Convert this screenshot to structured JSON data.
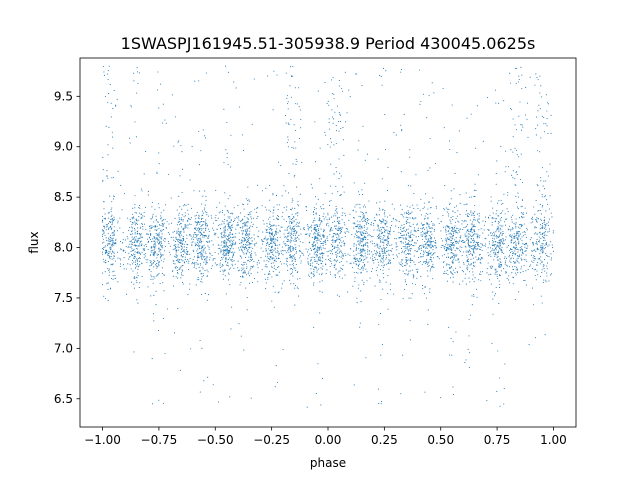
{
  "chart_data": {
    "type": "scatter",
    "title": "1SWASPJ161945.51-305938.9 Period 430045.0625s",
    "xlabel": "phase",
    "ylabel": "flux",
    "xlim": [
      -1.1,
      1.1
    ],
    "ylim": [
      6.22,
      9.88
    ],
    "xticks": [
      -1.0,
      -0.75,
      -0.5,
      -0.25,
      0.0,
      0.25,
      0.5,
      0.75,
      1.0
    ],
    "xtick_labels": [
      "−1.00",
      "−0.75",
      "−0.50",
      "−0.25",
      "0.00",
      "0.25",
      "0.50",
      "0.75",
      "1.00"
    ],
    "yticks": [
      6.5,
      7.0,
      7.5,
      8.0,
      8.5,
      9.0,
      9.5
    ],
    "ytick_labels": [
      "6.5",
      "7.0",
      "7.5",
      "8.0",
      "8.5",
      "9.0",
      "9.5"
    ],
    "grid": false,
    "legend": "none",
    "marker_color": "#1f77b4",
    "series": [
      {
        "description": "light curve points clustered in vertical bands across phase -1 to 1",
        "x_range": [
          -1.0,
          1.0
        ],
        "typical_y": 8.05,
        "y_spread_core": [
          7.6,
          8.5
        ],
        "y_extremes": [
          6.4,
          9.8
        ],
        "band_centers": [
          -0.97,
          -0.85,
          -0.76,
          -0.65,
          -0.56,
          -0.45,
          -0.36,
          -0.25,
          -0.16,
          -0.05,
          0.04,
          0.15,
          0.24,
          0.35,
          0.44,
          0.55,
          0.64,
          0.75,
          0.84,
          0.95
        ],
        "high_excursion_bands": [
          -0.97,
          -0.16,
          0.04,
          0.84,
          0.95
        ]
      }
    ]
  }
}
